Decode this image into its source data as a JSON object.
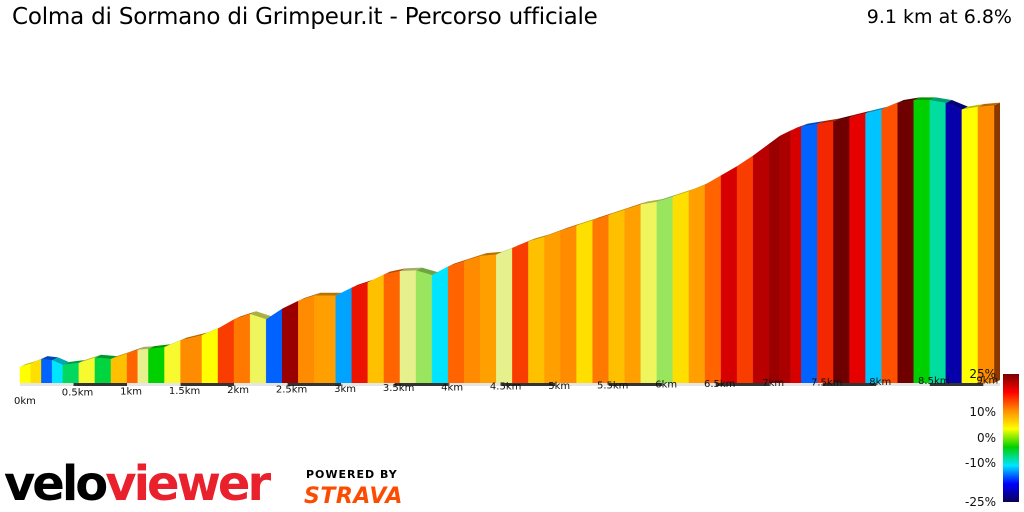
{
  "header": {
    "title": "Colma di Sormano di Grimpeur.it - Percorso ufficiale",
    "summary": "9.1 km at 6.8%"
  },
  "brand": {
    "logo_text_velo": "velo",
    "logo_text_viewer": "viewer",
    "powered_by": "POWERED BY",
    "strava": "STRAVA",
    "velo_color": "#000000",
    "viewer_color": "#e8212d",
    "strava_color": "#fc4c02"
  },
  "gradient_scale": {
    "labels": [
      "25%",
      "10%",
      "0%",
      "-10%",
      "-25%"
    ],
    "colors": [
      "#7a0000",
      "#ff0000",
      "#ff8c00",
      "#ffff00",
      "#00d000",
      "#00e5ff",
      "#0000ff",
      "#0a0055"
    ]
  },
  "chart_data": {
    "type": "area",
    "xlabel": "",
    "ylabel": "",
    "xlim": [
      0,
      9.1
    ],
    "x_ticks": [
      "0km",
      "0.5km",
      "1km",
      "1.5km",
      "2km",
      "2.5km",
      "3km",
      "3.5km",
      "4km",
      "4.5km",
      "5km",
      "5.5km",
      "6km",
      "6.5km",
      "7km",
      "7.5km",
      "8km",
      "8.5km",
      "9km"
    ],
    "distance_km": [
      0.0,
      0.1,
      0.2,
      0.3,
      0.4,
      0.55,
      0.7,
      0.85,
      1.0,
      1.1,
      1.2,
      1.35,
      1.5,
      1.7,
      1.85,
      2.0,
      2.15,
      2.3,
      2.45,
      2.6,
      2.75,
      2.95,
      3.1,
      3.25,
      3.4,
      3.55,
      3.7,
      3.85,
      4.0,
      4.15,
      4.3,
      4.45,
      4.6,
      4.75,
      4.9,
      5.05,
      5.2,
      5.35,
      5.5,
      5.65,
      5.8,
      5.95,
      6.1,
      6.25,
      6.4,
      6.55,
      6.7,
      6.85,
      7.0,
      7.1,
      7.2,
      7.3,
      7.45,
      7.6,
      7.75,
      7.9,
      8.05,
      8.2,
      8.35,
      8.5,
      8.65,
      8.8,
      8.95,
      9.1
    ],
    "elevation_rel": [
      0,
      5,
      12,
      10,
      3,
      6,
      14,
      12,
      20,
      26,
      27,
      30,
      40,
      48,
      58,
      72,
      80,
      72,
      88,
      100,
      108,
      108,
      120,
      128,
      140,
      145,
      146,
      139,
      152,
      160,
      168,
      170,
      180,
      190,
      197,
      206,
      214,
      222,
      230,
      238,
      246,
      250,
      258,
      266,
      276,
      290,
      304,
      320,
      338,
      350,
      358,
      364,
      368,
      372,
      378,
      384,
      390,
      400,
      404,
      404,
      400,
      390,
      394,
      396
    ],
    "segment_gradient_pct": [
      6,
      7,
      -12,
      -8,
      -3,
      5,
      -2,
      8,
      12,
      3,
      0,
      5,
      10,
      6,
      14,
      11,
      4,
      -12,
      22,
      10,
      9,
      -10,
      16,
      8,
      12,
      3,
      2,
      -8,
      12,
      10,
      9,
      3,
      14,
      8,
      9,
      10,
      7,
      11,
      8,
      9,
      4,
      2,
      7,
      9,
      12,
      18,
      14,
      20,
      22,
      21,
      18,
      -12,
      15,
      25,
      17,
      -9,
      13,
      25,
      0,
      -5,
      -20,
      6,
      10,
      12
    ]
  }
}
